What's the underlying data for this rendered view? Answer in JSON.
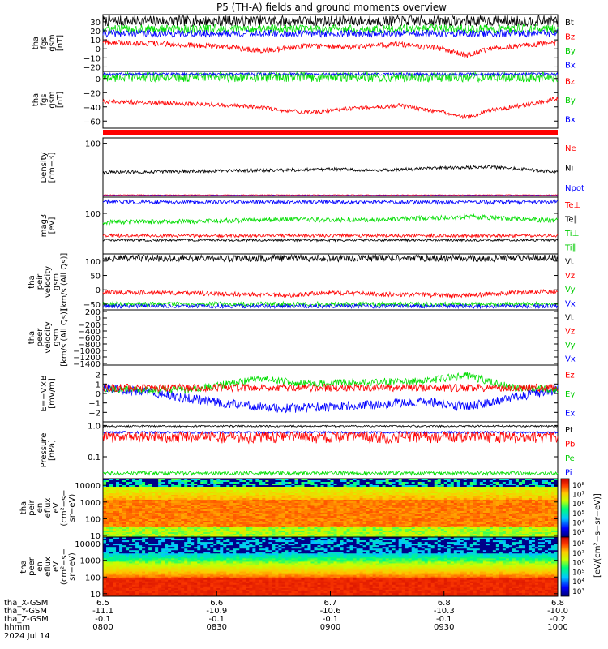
{
  "title": "P5 (TH-A) fields and ground moments overview",
  "chart_data": {
    "type": "line",
    "x_axis": {
      "tick_times": [
        "0800",
        "0830",
        "0900",
        "0930",
        "1000"
      ],
      "rows": [
        {
          "label": "tha_X-GSM",
          "values": [
            "6.5",
            "6.6",
            "6.7",
            "6.8",
            "6.8"
          ]
        },
        {
          "label": "tha_Y-GSM",
          "values": [
            "-11.1",
            "-10.9",
            "-10.6",
            "-10.3",
            "-10.0"
          ]
        },
        {
          "label": "tha_Z-GSM",
          "values": [
            "-0.1",
            "-0.1",
            "-0.1",
            "-0.1",
            "-0.2"
          ]
        },
        {
          "label": "hhmm",
          "values": [
            "0800",
            "0830",
            "0900",
            "0930",
            "1000"
          ]
        }
      ],
      "date": "2024 Jul 14"
    },
    "panels": [
      {
        "id": "fgs_gsm",
        "ylabel": [
          "tha",
          "fgs",
          "gsm",
          "[nT]"
        ],
        "ylim": [
          -25,
          38
        ],
        "yticks": [
          "30",
          "20",
          "10",
          "0",
          "−10",
          "−20"
        ],
        "ytick_values": [
          30,
          20,
          10,
          0,
          -10,
          -20
        ],
        "legend": [
          {
            "name": "Bt",
            "color": "#000000"
          },
          {
            "name": "Bz",
            "color": "#ff0000"
          },
          {
            "name": "By",
            "color": "#00cc00"
          },
          {
            "name": "Bx",
            "color": "#0000ff"
          }
        ],
        "series": [
          {
            "name": "Bt",
            "color": "#000000",
            "base": 31,
            "noise": 6
          },
          {
            "name": "By",
            "color": "#00dd00",
            "base": 22,
            "noise": 5
          },
          {
            "name": "Bx",
            "color": "#0000ff",
            "base": 17,
            "noise": 4
          },
          {
            "name": "Bz",
            "color": "#ff0000",
            "x": [
              0,
              0.15,
              0.25,
              0.35,
              0.45,
              0.55,
              0.65,
              0.75,
              0.8,
              0.85,
              0.95,
              1.0
            ],
            "y": [
              8,
              5,
              3,
              -2,
              3,
              2,
              5,
              0,
              -8,
              0,
              5,
              6
            ],
            "noise": 3
          }
        ]
      },
      {
        "id": "fgs_gse",
        "ylabel": [
          "tha",
          "fgs",
          "gsm",
          "[nT]"
        ],
        "ylim": [
          -70,
          10
        ],
        "yticks": [
          "0",
          "−20",
          "−40",
          "−60"
        ],
        "ytick_values": [
          0,
          -20,
          -40,
          -60
        ],
        "legend": [
          {
            "name": "Bz",
            "color": "#ff0000"
          },
          {
            "name": "By",
            "color": "#00cc00"
          },
          {
            "name": "Bx",
            "color": "#0000ff"
          }
        ],
        "series": [
          {
            "name": "By",
            "color": "#00dd00",
            "base": 2,
            "noise": 7
          },
          {
            "name": "Bx",
            "color": "#0000ff",
            "base": 6,
            "noise": 2
          },
          {
            "name": "Bz",
            "color": "#ff0000",
            "x": [
              0,
              0.15,
              0.3,
              0.45,
              0.55,
              0.65,
              0.75,
              0.8,
              0.85,
              0.95,
              1.0
            ],
            "y": [
              -32,
              -35,
              -38,
              -48,
              -42,
              -38,
              -48,
              -55,
              -45,
              -35,
              -28
            ],
            "noise": 3
          }
        ]
      },
      {
        "id": "density",
        "ylabel": [
          "Density",
          "[cm−3]"
        ],
        "ylim": [
          0,
          110
        ],
        "yticks": [
          "100"
        ],
        "ytick_values": [
          100
        ],
        "legend": [
          {
            "name": "Ne",
            "color": "#ff0000"
          },
          {
            "name": "Ni",
            "color": "#000000"
          },
          {
            "name": "Npot",
            "color": "#0000ff"
          }
        ],
        "series": [
          {
            "name": "Ni",
            "color": "#000000",
            "x": [
              0,
              0.2,
              0.4,
              0.5,
              0.6,
              0.75,
              0.85,
              0.95,
              1.0
            ],
            "y": [
              46,
              48,
              50,
              52,
              50,
              54,
              56,
              50,
              46
            ],
            "noise": 3
          },
          {
            "name": "Ne",
            "color": "#ff0000",
            "base": 4,
            "noise": 0.6
          },
          {
            "name": "Npot",
            "color": "#0000ff",
            "base": 3,
            "noise": 0.4
          }
        ]
      },
      {
        "id": "temperature",
        "ylabel": [
          "mag3",
          "[eV]"
        ],
        "ylim": [
          0,
          140
        ],
        "yticks": [
          "100"
        ],
        "ytick_values": [
          100
        ],
        "legend": [
          {
            "name": "Te⊥",
            "color": "#ff0000"
          },
          {
            "name": "Te∥",
            "color": "#000000"
          },
          {
            "name": "Ti⊥",
            "color": "#00cc00"
          },
          {
            "name": "Ti∥",
            "color": "#00cc00"
          }
        ],
        "series": [
          {
            "name": "Ti⊥",
            "color": "#0000ff",
            "base": 128,
            "noise": 5
          },
          {
            "name": "Ti∥",
            "color": "#00dd00",
            "x": [
              0,
              0.2,
              0.4,
              0.6,
              0.8,
              1.0
            ],
            "y": [
              78,
              80,
              85,
              84,
              92,
              82
            ],
            "noise": 6
          },
          {
            "name": "Te⊥",
            "color": "#ff0000",
            "base": 45,
            "noise": 4
          },
          {
            "name": "Te∥",
            "color": "#000000",
            "base": 34,
            "noise": 3
          }
        ]
      },
      {
        "id": "ion_velocity",
        "ylabel": [
          "tha",
          "peir",
          "velocity",
          "gsm",
          "[km/s (All Qs)]"
        ],
        "ylim": [
          -70,
          125
        ],
        "yticks": [
          "100",
          "50",
          "0",
          "−50"
        ],
        "ytick_values": [
          100,
          50,
          0,
          -50
        ],
        "legend": [
          {
            "name": "Vt",
            "color": "#000000"
          },
          {
            "name": "Vz",
            "color": "#ff0000"
          },
          {
            "name": "Vy",
            "color": "#00cc00"
          },
          {
            "name": "Vx",
            "color": "#0000ff"
          }
        ],
        "series": [
          {
            "name": "Vt",
            "color": "#000000",
            "base": 110,
            "noise": 12
          },
          {
            "name": "Vy",
            "color": "#00dd00",
            "base": -50,
            "noise": 8
          },
          {
            "name": "Vx",
            "color": "#0000ff",
            "base": -57,
            "noise": 7
          },
          {
            "name": "Vz",
            "color": "#ff0000",
            "x": [
              0,
              0.2,
              0.4,
              0.5,
              0.6,
              0.8,
              0.9,
              1.0
            ],
            "y": [
              -8,
              -12,
              -20,
              -10,
              -15,
              -20,
              -10,
              -5
            ],
            "noise": 8
          }
        ]
      },
      {
        "id": "electron_velocity",
        "ylabel": [
          "tha",
          "peer",
          "velocity",
          "gsm",
          "[km/s (All Qs)]"
        ],
        "ylim": [
          -1450,
          250
        ],
        "yticks": [
          "200",
          "0",
          "−200",
          "−400",
          "−600",
          "−800",
          "−1000",
          "−1200",
          "−1400"
        ],
        "ytick_values": [
          200,
          0,
          -200,
          -400,
          -600,
          -800,
          -1000,
          -1200,
          -1400
        ],
        "legend": [
          {
            "name": "Vt",
            "color": "#000000"
          },
          {
            "name": "Vz",
            "color": "#ff0000"
          },
          {
            "name": "Vy",
            "color": "#00cc00"
          },
          {
            "name": "Vx",
            "color": "#0000ff"
          }
        ],
        "series": []
      },
      {
        "id": "efield",
        "ylabel": [
          "E=−V×B",
          "[mV/m]"
        ],
        "ylim": [
          -3,
          3
        ],
        "yticks": [
          "2",
          "1",
          "0",
          "−1",
          "−2"
        ],
        "ytick_values": [
          2,
          1,
          0,
          -1,
          -2
        ],
        "legend": [
          {
            "name": "Ez",
            "color": "#ff0000"
          },
          {
            "name": "Ey",
            "color": "#00cc00"
          },
          {
            "name": "Ex",
            "color": "#0000ff"
          }
        ],
        "series": [
          {
            "name": "Ex",
            "color": "#0000ff",
            "x": [
              0,
              0.1,
              0.2,
              0.3,
              0.4,
              0.5,
              0.6,
              0.7,
              0.8,
              0.9,
              1.0
            ],
            "y": [
              0.6,
              0.2,
              -0.6,
              -1.2,
              -1.6,
              -1.4,
              -1.2,
              -0.8,
              -1.4,
              -0.4,
              0.4
            ],
            "noise": 0.5
          },
          {
            "name": "Ey",
            "color": "#00dd00",
            "x": [
              0,
              0.2,
              0.35,
              0.45,
              0.55,
              0.7,
              0.8,
              0.9,
              1.0
            ],
            "y": [
              0.4,
              0.4,
              1.6,
              1.0,
              1.2,
              1.3,
              1.9,
              0.6,
              0.4
            ],
            "noise": 0.4
          },
          {
            "name": "Ez",
            "color": "#ff0000",
            "base": 0.6,
            "noise": 0.4
          }
        ]
      },
      {
        "id": "pressure",
        "ylabel": [
          "Pressure",
          "[nPa]"
        ],
        "ylim": [
          0.02,
          1.3
        ],
        "log": true,
        "yticks": [
          "1.0",
          "0.1"
        ],
        "ytick_values": [
          1.0,
          0.1
        ],
        "legend": [
          {
            "name": "Pt",
            "color": "#000000"
          },
          {
            "name": "Pb",
            "color": "#ff0000"
          },
          {
            "name": "Pe",
            "color": "#00cc00"
          },
          {
            "name": "Pi",
            "color": "#0000ff"
          }
        ],
        "series": [
          {
            "name": "Pt",
            "color": "#000000",
            "base": 0.95,
            "noise": 0.06
          },
          {
            "name": "Pi",
            "color": "#0000ff",
            "base": 0.6,
            "noise": 0.05
          },
          {
            "name": "Pb",
            "color": "#ff0000",
            "base": 0.45,
            "noise": 0.18
          },
          {
            "name": "Pe",
            "color": "#00dd00",
            "base": 0.03,
            "noise": 0.004
          }
        ]
      },
      {
        "id": "ion_spectrogram",
        "type": "heatmap",
        "ylabel": [
          "tha",
          "peir",
          "en",
          "eflux",
          "eV",
          "(cm²−s−",
          "sr−eV)"
        ],
        "log": true,
        "ylim": [
          8,
          25000
        ],
        "yticks": [
          "10000",
          "1000",
          "100",
          "10"
        ],
        "ytick_values": [
          10000,
          1000,
          100,
          10
        ],
        "colorbar_ticks": [
          "10⁸",
          "10⁷",
          "10⁶",
          "10⁵",
          "10⁴",
          "10³"
        ]
      },
      {
        "id": "electron_spectrogram",
        "type": "heatmap",
        "ylabel": [
          "tha",
          "peer",
          "en",
          "eflux",
          "eV",
          "(cm²−s−",
          "sr−eV)"
        ],
        "log": true,
        "ylim": [
          7,
          25000
        ],
        "yticks": [
          "10000",
          "1000",
          "100",
          "10"
        ],
        "ytick_values": [
          10000,
          1000,
          100,
          10
        ],
        "colorbar_ticks": [
          "10⁸",
          "10⁷",
          "10⁶",
          "10⁵",
          "10⁴",
          "10³"
        ]
      }
    ],
    "colorbar_label": "[eV/(cm²−s−sr−eV)]"
  }
}
